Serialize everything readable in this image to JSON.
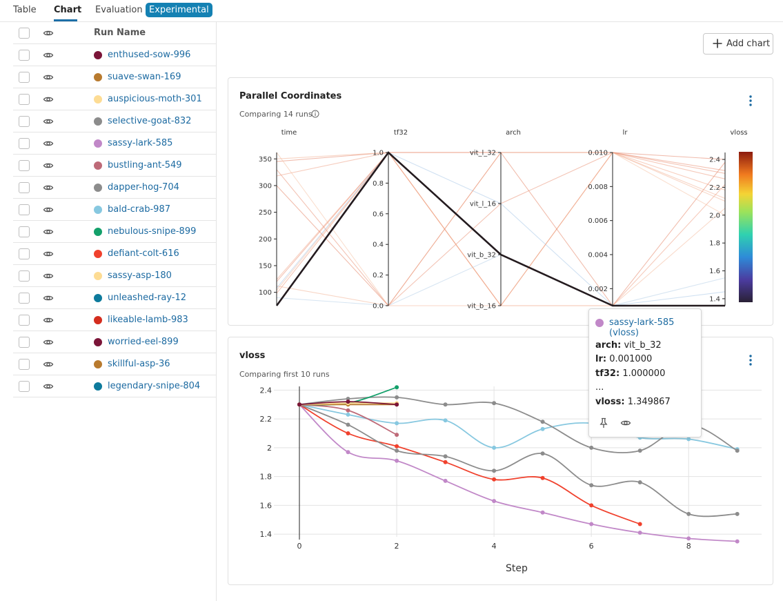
{
  "tabs": [
    {
      "label": "Table",
      "active": false
    },
    {
      "label": "Chart",
      "active": true
    },
    {
      "label": "Evaluation",
      "active": false
    }
  ],
  "experimental_badge": "Experimental",
  "table": {
    "run_name_header": "Run Name",
    "runs": [
      {
        "name": "enthused-sow-996",
        "color": "#7b1538"
      },
      {
        "name": "suave-swan-169",
        "color": "#b87a2e"
      },
      {
        "name": "auspicious-moth-301",
        "color": "#fddc94"
      },
      {
        "name": "selective-goat-832",
        "color": "#8c8c8c"
      },
      {
        "name": "sassy-lark-585",
        "color": "#c188c8"
      },
      {
        "name": "bustling-ant-549",
        "color": "#be6a78"
      },
      {
        "name": "dapper-hog-704",
        "color": "#8c8c8c"
      },
      {
        "name": "bald-crab-987",
        "color": "#87c8e0"
      },
      {
        "name": "nebulous-snipe-899",
        "color": "#13a06a"
      },
      {
        "name": "defiant-colt-616",
        "color": "#f0412d"
      },
      {
        "name": "sassy-asp-180",
        "color": "#fddc94"
      },
      {
        "name": "unleashed-ray-12",
        "color": "#0d7a9c"
      },
      {
        "name": "likeable-lamb-983",
        "color": "#d42d1e"
      },
      {
        "name": "worried-eel-899",
        "color": "#7b1538"
      },
      {
        "name": "skillful-asp-36",
        "color": "#b87a2e"
      },
      {
        "name": "legendary-snipe-804",
        "color": "#0d7a9c"
      }
    ]
  },
  "add_chart_label": "Add chart",
  "parallel_panel": {
    "title": "Parallel Coordinates",
    "subtitle": "Comparing 14 runs",
    "axes": [
      {
        "name": "time",
        "ticks": [
          "350",
          "300",
          "250",
          "200",
          "150",
          "100"
        ]
      },
      {
        "name": "tf32",
        "ticks": [
          "1.0",
          "0.8",
          "0.6",
          "0.4",
          "0.2",
          "0.0"
        ]
      },
      {
        "name": "arch",
        "ticks": [
          "vit_l_32",
          "vit_l_16",
          "vit_b_32",
          "vit_b_16"
        ]
      },
      {
        "name": "lr",
        "ticks": [
          "0.010",
          "0.008",
          "0.006",
          "0.004",
          "0.002"
        ]
      },
      {
        "name": "vloss",
        "ticks": [
          "2.4",
          "2.2",
          "2.0",
          "1.8",
          "1.6",
          "1.4"
        ]
      }
    ]
  },
  "vloss_panel": {
    "title": "vloss",
    "subtitle": "Comparing first 10 runs",
    "xlabel": "Step"
  },
  "tooltip": {
    "run": "sassy-lark-585 (vloss)",
    "color": "#c188c8",
    "lines": [
      {
        "key": "arch:",
        "value": "vit_b_32"
      },
      {
        "key": "lr:",
        "value": "0.001000"
      },
      {
        "key": "tf32:",
        "value": "1.000000"
      },
      {
        "key": "...",
        "value": ""
      },
      {
        "key": "vloss:",
        "value": "1.349867"
      }
    ]
  },
  "chart_data": [
    {
      "type": "parallel_coordinates",
      "title": "Parallel Coordinates",
      "axes": [
        "time",
        "tf32",
        "arch",
        "lr",
        "vloss"
      ],
      "ranges": {
        "time": [
          75,
          362
        ],
        "tf32": [
          0,
          1
        ],
        "lr": [
          0.001,
          0.01
        ],
        "vloss": [
          1.35,
          2.45
        ]
      },
      "arch_levels": [
        "vit_b_16",
        "vit_b_32",
        "vit_l_16",
        "vit_l_32"
      ],
      "colorscale": {
        "low": "#2a2135",
        "high": "#8c1b0e",
        "min": 1.35,
        "max": 2.45
      },
      "highlighted_run": {
        "name": "sassy-lark-585",
        "time": 75,
        "tf32": 1.0,
        "arch": "vit_b_32",
        "lr": 0.001,
        "vloss": 1.349867
      },
      "runs": [
        {
          "time": 345,
          "tf32": 1.0,
          "arch": "vit_l_32",
          "lr": 0.01,
          "vloss": 2.4
        },
        {
          "time": 330,
          "tf32": 0.0,
          "arch": "vit_l_16",
          "lr": 0.01,
          "vloss": 2.3
        },
        {
          "time": 318,
          "tf32": 1.0,
          "arch": "vit_b_16",
          "lr": 0.001,
          "vloss": 2.22
        },
        {
          "time": 124,
          "tf32": 1.0,
          "arch": "vit_l_32",
          "lr": 0.01,
          "vloss": 2.18
        },
        {
          "time": 112,
          "tf32": 0.0,
          "arch": "vit_b_16",
          "lr": 0.01,
          "vloss": 2.1
        },
        {
          "time": 104,
          "tf32": 1.0,
          "arch": "vit_b_16",
          "lr": 0.001,
          "vloss": 2.05
        },
        {
          "time": 362,
          "tf32": 0.0,
          "arch": "vit_l_32",
          "lr": 0.01,
          "vloss": 2.0
        },
        {
          "time": 98,
          "tf32": 1.0,
          "arch": "vit_b_16",
          "lr": 0.01,
          "vloss": 2.26
        },
        {
          "time": 90,
          "tf32": 0.0,
          "arch": "vit_b_32",
          "lr": 0.001,
          "vloss": 1.55
        },
        {
          "time": 108,
          "tf32": 1.0,
          "arch": "vit_l_16",
          "lr": 0.001,
          "vloss": 1.45
        },
        {
          "time": 350,
          "tf32": 1.0,
          "arch": "vit_b_16",
          "lr": 0.01,
          "vloss": 2.12
        },
        {
          "time": 300,
          "tf32": 0.0,
          "arch": "vit_l_32",
          "lr": 0.001,
          "vloss": 2.38
        },
        {
          "time": 120,
          "tf32": 1.0,
          "arch": "vit_l_32",
          "lr": 0.01,
          "vloss": 2.32
        }
      ]
    },
    {
      "type": "line",
      "title": "vloss",
      "xlabel": "Step",
      "ylabel": "",
      "xlim": [
        0,
        9.5
      ],
      "ylim": [
        1.3,
        2.45
      ],
      "xticks": [
        0,
        2,
        4,
        6,
        8
      ],
      "yticks": [
        1.4,
        1.6,
        1.8,
        2,
        2.2,
        2.4
      ],
      "ytick_labels": [
        "1.4",
        "1.6",
        "1.8",
        "2",
        "2.2",
        "2.4"
      ],
      "cursor_step": 0,
      "series": [
        {
          "name": "sassy-lark-585",
          "color": "#c188c8",
          "x": [
            0,
            1,
            2,
            3,
            4,
            5,
            6,
            7,
            8,
            9
          ],
          "y": [
            2.3,
            1.97,
            1.91,
            1.77,
            1.63,
            1.55,
            1.47,
            1.41,
            1.37,
            1.35
          ]
        },
        {
          "name": "defiant-colt-616",
          "color": "#f0412d",
          "x": [
            0,
            1,
            2,
            3,
            4,
            5,
            6,
            7
          ],
          "y": [
            2.3,
            2.1,
            2.01,
            1.9,
            1.78,
            1.79,
            1.6,
            1.47
          ]
        },
        {
          "name": "bald-crab-987",
          "color": "#87c8e0",
          "x": [
            0,
            1,
            2,
            3,
            4,
            5,
            6,
            7,
            8,
            9
          ],
          "y": [
            2.3,
            2.23,
            2.17,
            2.19,
            2.0,
            2.13,
            2.17,
            2.07,
            2.06,
            1.99
          ]
        },
        {
          "name": "selective-goat-832",
          "color": "#8c8c8c",
          "x": [
            0,
            1,
            2,
            3,
            4,
            5,
            6,
            7,
            8,
            9
          ],
          "y": [
            2.3,
            2.34,
            2.35,
            2.3,
            2.31,
            2.18,
            2.0,
            1.98,
            2.16,
            1.98
          ]
        },
        {
          "name": "dapper-hog-704",
          "color": "#8c8c8c",
          "x": [
            0,
            1,
            2,
            3,
            4,
            5,
            6,
            7,
            8,
            9
          ],
          "y": [
            2.3,
            2.16,
            1.98,
            1.94,
            1.84,
            1.96,
            1.74,
            1.76,
            1.54,
            1.54
          ]
        },
        {
          "name": "bustling-ant-549",
          "color": "#be6a78",
          "x": [
            0,
            1,
            2
          ],
          "y": [
            2.3,
            2.26,
            2.09
          ]
        },
        {
          "name": "nebulous-snipe-899",
          "color": "#13a06a",
          "x": [
            0,
            1,
            2
          ],
          "y": [
            2.3,
            2.31,
            2.42
          ]
        },
        {
          "name": "suave-swan-169",
          "color": "#b87a2e",
          "x": [
            0,
            1,
            2
          ],
          "y": [
            2.3,
            2.3,
            2.3
          ]
        },
        {
          "name": "auspicious-moth-301",
          "color": "#fddc94",
          "x": [
            0,
            1,
            2
          ],
          "y": [
            2.3,
            2.31,
            2.31
          ]
        },
        {
          "name": "enthused-sow-996",
          "color": "#7b1538",
          "x": [
            0,
            1,
            2
          ],
          "y": [
            2.3,
            2.32,
            2.3
          ]
        }
      ]
    }
  ]
}
